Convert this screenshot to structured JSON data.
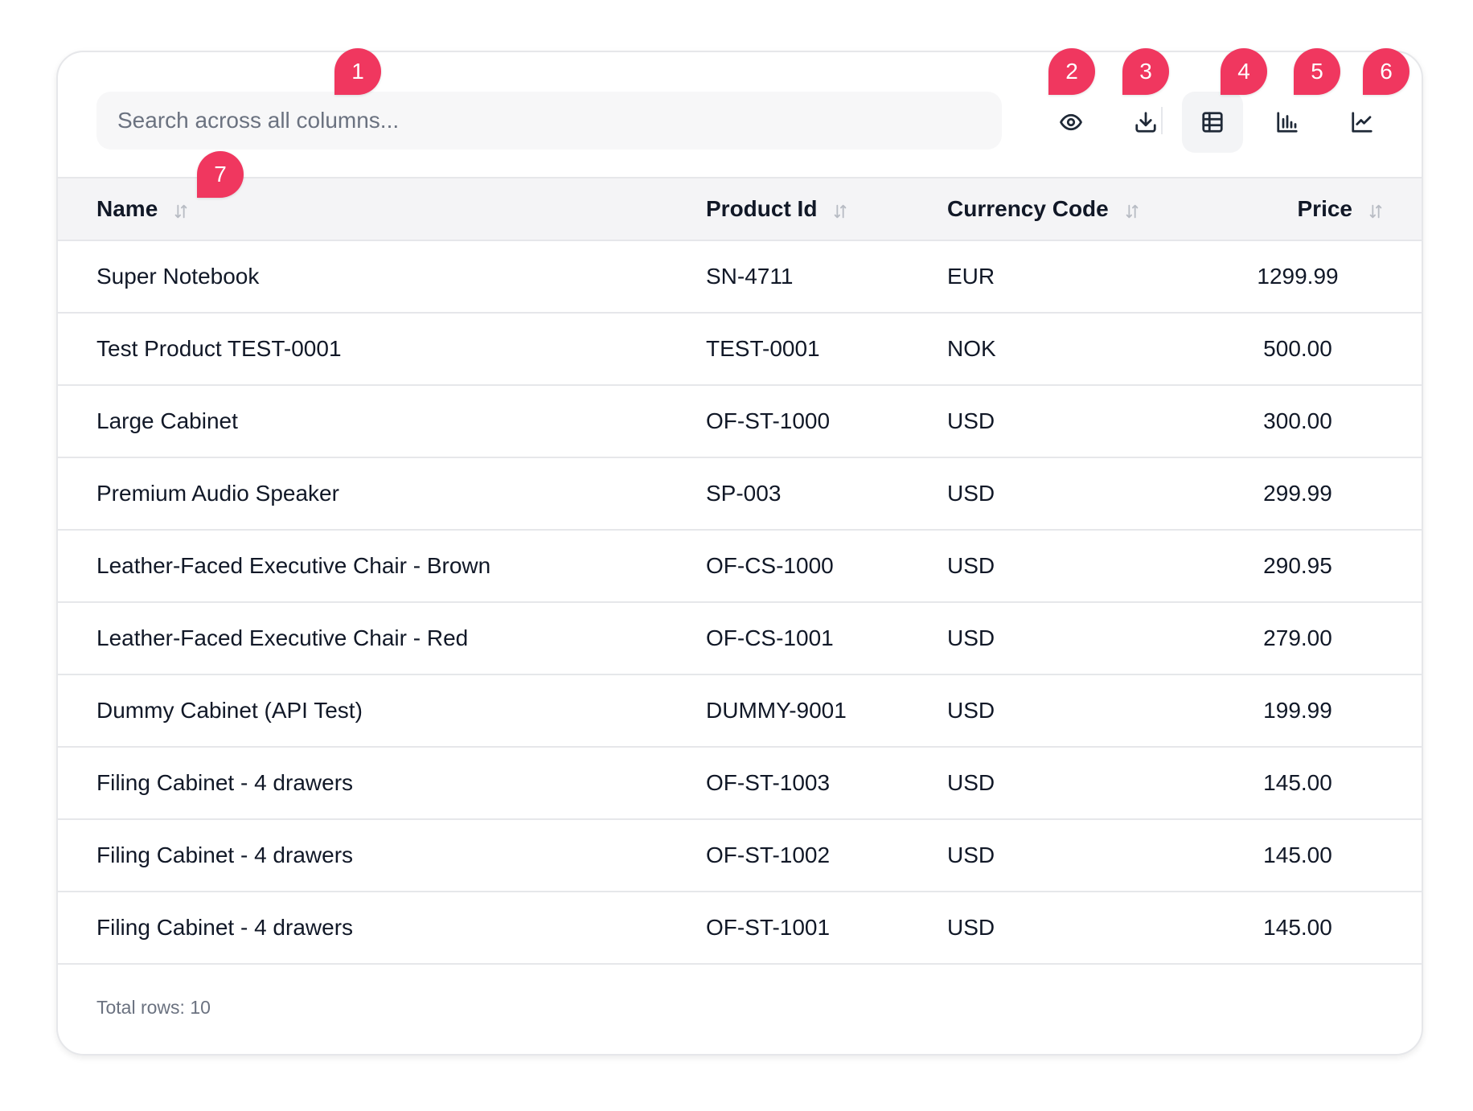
{
  "search": {
    "placeholder": "Search across all columns..."
  },
  "toolbar": {
    "buttons": [
      {
        "icon": "eye-icon",
        "label": "toggle-columns"
      },
      {
        "icon": "download-icon",
        "label": "export"
      },
      {
        "icon": "table-icon",
        "label": "table-view",
        "active": true
      },
      {
        "icon": "bar-chart-icon",
        "label": "bar-chart-view"
      },
      {
        "icon": "line-chart-icon",
        "label": "line-chart-view"
      }
    ]
  },
  "table": {
    "columns": [
      "Name",
      "Product Id",
      "Currency Code",
      "Price"
    ],
    "rows": [
      {
        "name": "Super Notebook",
        "product_id": "SN-4711",
        "currency": "EUR",
        "price": "1299.99"
      },
      {
        "name": "Test Product TEST-0001",
        "product_id": "TEST-0001",
        "currency": "NOK",
        "price": "500.00"
      },
      {
        "name": "Large Cabinet",
        "product_id": "OF-ST-1000",
        "currency": "USD",
        "price": "300.00"
      },
      {
        "name": "Premium Audio Speaker",
        "product_id": "SP-003",
        "currency": "USD",
        "price": "299.99"
      },
      {
        "name": "Leather-Faced Executive Chair - Brown",
        "product_id": "OF-CS-1000",
        "currency": "USD",
        "price": "290.95"
      },
      {
        "name": "Leather-Faced Executive Chair - Red",
        "product_id": "OF-CS-1001",
        "currency": "USD",
        "price": "279.00"
      },
      {
        "name": "Dummy Cabinet (API Test)",
        "product_id": "DUMMY-9001",
        "currency": "USD",
        "price": "199.99"
      },
      {
        "name": "Filing Cabinet - 4 drawers",
        "product_id": "OF-ST-1003",
        "currency": "USD",
        "price": "145.00"
      },
      {
        "name": "Filing Cabinet - 4 drawers",
        "product_id": "OF-ST-1002",
        "currency": "USD",
        "price": "145.00"
      },
      {
        "name": "Filing Cabinet - 4 drawers",
        "product_id": "OF-ST-1001",
        "currency": "USD",
        "price": "145.00"
      }
    ]
  },
  "footer": {
    "total_rows": "Total rows: 10"
  },
  "annotations": {
    "badges": [
      "1",
      "2",
      "3",
      "4",
      "5",
      "6",
      "7"
    ],
    "color": "#f0375f"
  }
}
